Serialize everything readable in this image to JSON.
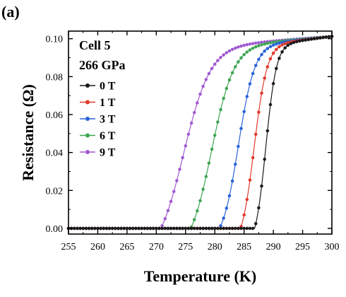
{
  "panel_label": "(a)",
  "chart_data": {
    "type": "line",
    "xlabel": "Temperature (K)",
    "ylabel": "Resistance (Ω)",
    "annotation_lines": [
      "Cell 5",
      "266 GPa"
    ],
    "xlim": [
      255,
      300
    ],
    "ylim": [
      -0.003,
      0.104
    ],
    "x_ticks": [
      255,
      260,
      265,
      270,
      275,
      280,
      285,
      290,
      295,
      300
    ],
    "y_ticks": [
      0.0,
      0.02,
      0.04,
      0.06,
      0.08,
      0.1
    ],
    "x_tick_labels": [
      "255",
      "260",
      "265",
      "270",
      "275",
      "280",
      "285",
      "290",
      "295",
      "300"
    ],
    "y_tick_labels": [
      "0.00",
      "0.02",
      "0.04",
      "0.06",
      "0.08",
      "0.10"
    ],
    "grid": false,
    "legend_position": "left-middle",
    "series": [
      {
        "name": "0 T",
        "color": "#1a1a1a",
        "tc": 288.7,
        "width": 0.9,
        "onset": 286.8,
        "r_top": 0.0958,
        "x": [
          255,
          260,
          265,
          270,
          275,
          280,
          284,
          286.5,
          287.2,
          287.8,
          288.3,
          288.7,
          289.1,
          289.6,
          290.2,
          291,
          293,
          296,
          300
        ],
        "y": [
          0.0,
          0.0,
          0.0,
          0.0,
          0.0,
          0.0,
          0.0,
          0.0,
          0.006,
          0.02,
          0.04,
          0.058,
          0.074,
          0.087,
          0.094,
          0.096,
          0.097,
          0.099,
          0.101
        ]
      },
      {
        "name": "1 T",
        "color": "#e03a2c",
        "tc": 286.7,
        "width": 1.1,
        "onset": 284.4,
        "r_top": 0.0955,
        "x": [
          255,
          260,
          265,
          270,
          275,
          280,
          283,
          284.5,
          285.3,
          286.0,
          286.7,
          287.4,
          288.1,
          288.8,
          289.5,
          291,
          294,
          297,
          300
        ],
        "y": [
          0.0,
          0.0,
          0.0,
          0.0,
          0.0,
          0.0,
          0.0,
          0.002,
          0.012,
          0.032,
          0.055,
          0.074,
          0.087,
          0.093,
          0.095,
          0.096,
          0.098,
          0.1,
          0.101
        ]
      },
      {
        "name": "3 T",
        "color": "#2a63d8",
        "tc": 284.0,
        "width": 1.4,
        "onset": 280.8,
        "r_top": 0.0952,
        "x": [
          255,
          260,
          265,
          270,
          275,
          279,
          281,
          282.2,
          283.2,
          284.0,
          284.9,
          285.8,
          286.8,
          288,
          290,
          293,
          296,
          300
        ],
        "y": [
          0.0,
          0.0,
          0.0,
          0.0,
          0.0,
          0.0,
          0.002,
          0.014,
          0.036,
          0.054,
          0.072,
          0.085,
          0.092,
          0.095,
          0.096,
          0.098,
          0.1,
          0.101
        ]
      },
      {
        "name": "6 T",
        "color": "#3fa654",
        "tc": 279.4,
        "width": 1.9,
        "onset": 275.9,
        "r_top": 0.0948,
        "x": [
          255,
          260,
          265,
          270,
          274,
          276,
          277.3,
          278.5,
          279.4,
          280.4,
          281.5,
          282.8,
          284.5,
          287,
          290,
          294,
          297,
          300
        ],
        "y": [
          0.0,
          0.0,
          0.0,
          0.0,
          0.0,
          0.002,
          0.014,
          0.034,
          0.052,
          0.071,
          0.085,
          0.092,
          0.094,
          0.096,
          0.097,
          0.099,
          0.1,
          0.101
        ]
      },
      {
        "name": "9 T",
        "color": "#a05ad0",
        "tc": 274.6,
        "width": 2.3,
        "onset": 270.8,
        "r_top": 0.0945,
        "x": [
          255,
          260,
          265,
          269,
          271,
          272.3,
          273.5,
          274.6,
          275.7,
          276.9,
          278.2,
          280,
          283,
          287,
          291,
          295,
          300
        ],
        "y": [
          0.0,
          0.0,
          0.0,
          0.0,
          0.002,
          0.014,
          0.032,
          0.05,
          0.069,
          0.084,
          0.091,
          0.094,
          0.096,
          0.097,
          0.098,
          0.1,
          0.101
        ]
      }
    ]
  }
}
